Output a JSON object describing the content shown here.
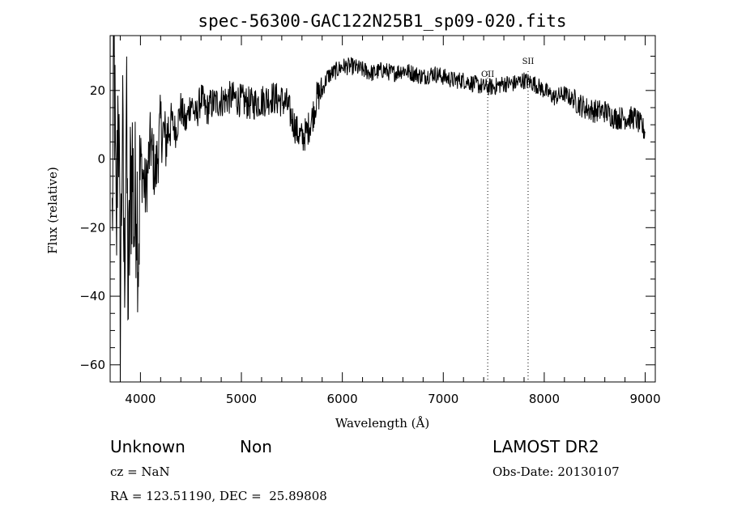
{
  "chart_data": {
    "type": "line",
    "title": "spec-56300-GAC122N25B1_sp09-020.fits",
    "xlabel": "Wavelength (Å)",
    "ylabel": "Flux (relative)",
    "xlim": [
      3700,
      9100
    ],
    "ylim": [
      -65,
      36
    ],
    "xticks": [
      4000,
      5000,
      6000,
      7000,
      8000,
      9000
    ],
    "yticks": [
      -60,
      -40,
      -20,
      0,
      20
    ],
    "xtick_labels": [
      "4000",
      "5000",
      "6000",
      "7000",
      "8000",
      "9000"
    ],
    "ytick_labels": [
      "−60",
      "−40",
      "−20",
      "0",
      "20"
    ],
    "line_color": "#000000",
    "grid": false,
    "lines_marked": [
      {
        "name": "OII",
        "wavelength": 7440
      },
      {
        "name": "SII",
        "wavelength": 7840
      }
    ],
    "series": [
      {
        "x": [
          3720,
          3740,
          3760,
          3780,
          3800,
          3820,
          3840,
          3860,
          3880,
          3900,
          3920,
          3940,
          3960,
          3980,
          4000,
          4050,
          4100,
          4150,
          4200,
          4250,
          4300,
          4350,
          4400,
          4450,
          4500,
          4550,
          4600,
          4650,
          4700,
          4800,
          4900,
          5000,
          5100,
          5200,
          5300,
          5400,
          5450,
          5500,
          5550,
          5600,
          5650,
          5700,
          5750,
          5800,
          5850,
          5900,
          5950,
          6000,
          6100,
          6200,
          6300,
          6400,
          6500,
          6600,
          6700,
          6800,
          6900,
          7000,
          7100,
          7200,
          7300,
          7400,
          7500,
          7600,
          7700,
          7800,
          7900,
          8000,
          8100,
          8200,
          8300,
          8400,
          8500,
          8600,
          8700,
          8800,
          8900,
          9000
        ],
        "y": [
          -20,
          30,
          -30,
          25,
          -45,
          10,
          -35,
          15,
          -43,
          -10,
          0,
          -20,
          -5,
          -25,
          0,
          -10,
          5,
          -5,
          10,
          5,
          12,
          8,
          15,
          10,
          17,
          12,
          18,
          14,
          16,
          17,
          18,
          17,
          16,
          17,
          18,
          17,
          16,
          12,
          8,
          6,
          8,
          12,
          18,
          20,
          24,
          25,
          26,
          27,
          27,
          26,
          25,
          26,
          25,
          26,
          25,
          24,
          25,
          24,
          23,
          23,
          22,
          21,
          21,
          22,
          22,
          23,
          22,
          20,
          18,
          19,
          17,
          15,
          14,
          14,
          12,
          12,
          12,
          8
        ]
      }
    ]
  },
  "info": {
    "object_class": "Unknown",
    "subclass": "Non",
    "redshift": "cz = NaN",
    "coords": "RA = 123.51190, DEC =  25.89808",
    "survey": "LAMOST DR2",
    "obs_date": "Obs-Date: 20130107"
  }
}
